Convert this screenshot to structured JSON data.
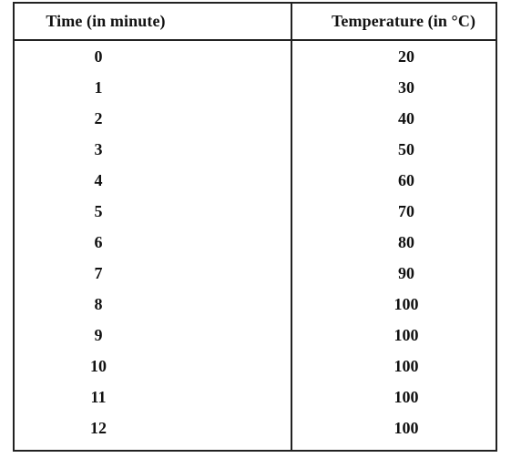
{
  "table": {
    "headers": {
      "time": "Time (in minute)",
      "temperature": "Temperature (in °C)"
    },
    "rows": [
      {
        "time": "0",
        "temperature": "20"
      },
      {
        "time": "1",
        "temperature": "30"
      },
      {
        "time": "2",
        "temperature": "40"
      },
      {
        "time": "3",
        "temperature": "50"
      },
      {
        "time": "4",
        "temperature": "60"
      },
      {
        "time": "5",
        "temperature": "70"
      },
      {
        "time": "6",
        "temperature": "80"
      },
      {
        "time": "7",
        "temperature": "90"
      },
      {
        "time": "8",
        "temperature": "100"
      },
      {
        "time": "9",
        "temperature": "100"
      },
      {
        "time": "10",
        "temperature": "100"
      },
      {
        "time": "11",
        "temperature": "100"
      },
      {
        "time": "12",
        "temperature": "100"
      }
    ]
  }
}
